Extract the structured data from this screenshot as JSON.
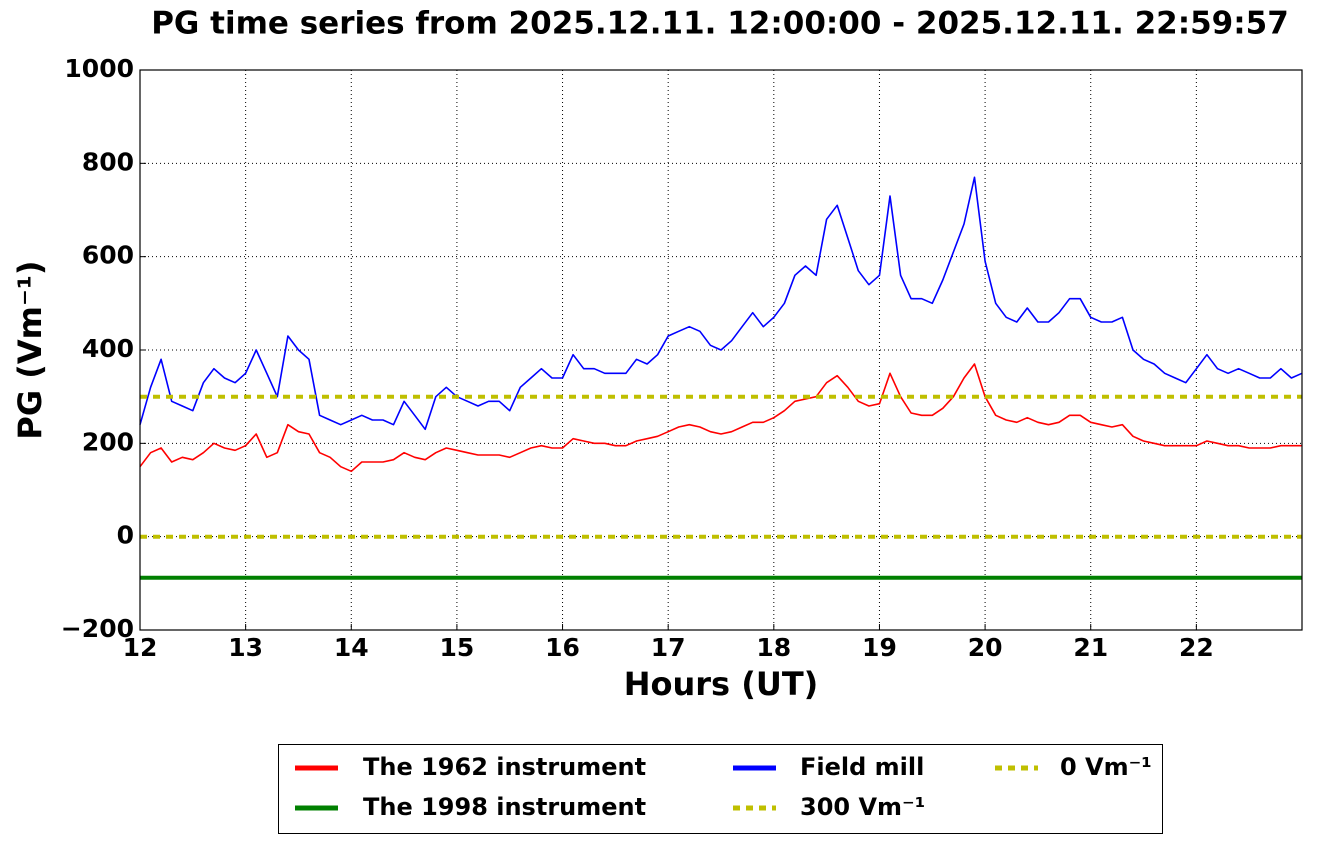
{
  "chart_data": {
    "type": "line",
    "title": "PG time series from 2025.12.11. 12:00:00 - 2025.12.11. 22:59:57",
    "xlabel": "Hours (UT)",
    "ylabel": "PG (Vm⁻¹)",
    "xlim": [
      12,
      23
    ],
    "ylim": [
      -200,
      1000
    ],
    "xticks": [
      12,
      13,
      14,
      15,
      16,
      17,
      18,
      19,
      20,
      21,
      22
    ],
    "yticks": [
      {
        "value": -200,
        "label": "−200"
      },
      0,
      200,
      400,
      600,
      800,
      1000
    ],
    "grid": true,
    "legend": "below",
    "x": [
      12,
      12.1,
      12.2,
      12.3,
      12.4,
      12.5,
      12.6,
      12.7,
      12.8,
      12.9,
      13,
      13.1,
      13.2,
      13.3,
      13.4,
      13.5,
      13.6,
      13.7,
      13.8,
      13.9,
      14,
      14.1,
      14.2,
      14.3,
      14.4,
      14.5,
      14.6,
      14.7,
      14.8,
      14.9,
      15,
      15.1,
      15.2,
      15.3,
      15.4,
      15.5,
      15.6,
      15.7,
      15.8,
      15.9,
      16,
      16.1,
      16.2,
      16.3,
      16.4,
      16.5,
      16.6,
      16.7,
      16.8,
      16.9,
      17,
      17.1,
      17.2,
      17.3,
      17.4,
      17.5,
      17.6,
      17.7,
      17.8,
      17.9,
      18,
      18.1,
      18.2,
      18.3,
      18.4,
      18.5,
      18.6,
      18.7,
      18.8,
      18.9,
      19,
      19.1,
      19.2,
      19.3,
      19.4,
      19.5,
      19.6,
      19.7,
      19.8,
      19.9,
      20,
      20.1,
      20.2,
      20.3,
      20.4,
      20.5,
      20.6,
      20.7,
      20.8,
      20.9,
      21,
      21.1,
      21.2,
      21.3,
      21.4,
      21.5,
      21.6,
      21.7,
      21.8,
      21.9,
      22,
      22.1,
      22.2,
      22.3,
      22.4,
      22.5,
      22.6,
      22.7,
      22.8,
      22.9,
      23
    ],
    "series": [
      {
        "name": "The 1962 instrument",
        "color": "#ff0000",
        "width": 1.6,
        "values": [
          150,
          180,
          190,
          160,
          170,
          165,
          180,
          200,
          190,
          185,
          195,
          220,
          170,
          180,
          240,
          225,
          220,
          180,
          170,
          150,
          140,
          160,
          160,
          160,
          165,
          180,
          170,
          165,
          180,
          190,
          185,
          180,
          175,
          175,
          175,
          170,
          180,
          190,
          195,
          190,
          190,
          210,
          205,
          200,
          200,
          195,
          195,
          205,
          210,
          215,
          225,
          235,
          240,
          235,
          225,
          220,
          225,
          235,
          245,
          245,
          255,
          270,
          290,
          295,
          300,
          330,
          345,
          320,
          290,
          280,
          285,
          350,
          300,
          265,
          260,
          260,
          275,
          300,
          340,
          370,
          300,
          260,
          250,
          245,
          255,
          245,
          240,
          245,
          260,
          260,
          245,
          240,
          235,
          240,
          215,
          205,
          200,
          195,
          195,
          195,
          195,
          205,
          200,
          195,
          195,
          190,
          190,
          190,
          195,
          195,
          195
        ]
      },
      {
        "name": "The 1998 instrument",
        "color": "#008000",
        "width": 4,
        "x": [
          12,
          23
        ],
        "values": [
          -88,
          -88
        ]
      },
      {
        "name": "Field mill",
        "color": "#0000ff",
        "width": 1.6,
        "values": [
          240,
          320,
          380,
          290,
          280,
          270,
          330,
          360,
          340,
          330,
          350,
          400,
          350,
          300,
          430,
          400,
          380,
          260,
          250,
          240,
          250,
          260,
          250,
          250,
          240,
          290,
          260,
          230,
          300,
          320,
          300,
          290,
          280,
          290,
          290,
          270,
          320,
          340,
          360,
          340,
          340,
          390,
          360,
          360,
          350,
          350,
          350,
          380,
          370,
          390,
          430,
          440,
          450,
          440,
          410,
          400,
          420,
          450,
          480,
          450,
          470,
          500,
          560,
          580,
          560,
          680,
          710,
          640,
          570,
          540,
          560,
          730,
          560,
          510,
          510,
          500,
          550,
          610,
          670,
          770,
          590,
          500,
          470,
          460,
          490,
          460,
          460,
          480,
          510,
          510,
          470,
          460,
          460,
          470,
          400,
          380,
          370,
          350,
          340,
          330,
          360,
          390,
          360,
          350,
          360,
          350,
          340,
          340,
          360,
          340,
          350
        ]
      },
      {
        "name": "300 Vm⁻¹",
        "color": "#bfbf00",
        "width": 4,
        "dash": true,
        "x": [
          12,
          23
        ],
        "values": [
          300,
          300
        ]
      },
      {
        "name": "0 Vm⁻¹",
        "color": "#bfbf00",
        "width": 4,
        "dash": true,
        "x": [
          12,
          23
        ],
        "values": [
          0,
          0
        ]
      }
    ]
  }
}
